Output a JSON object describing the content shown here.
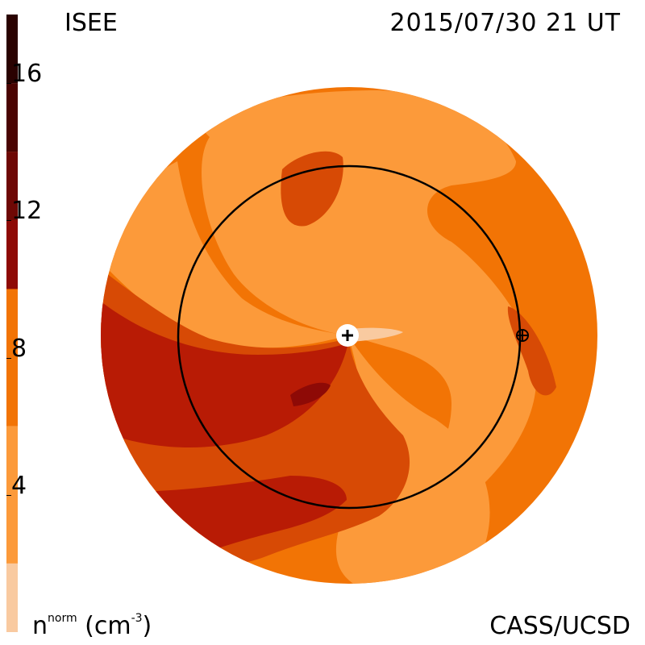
{
  "header": {
    "organization": "ISEE",
    "timestamp": "2015/07/30 21 UT"
  },
  "footer": {
    "credit": "CASS/UCSD",
    "units_prefix": "n",
    "units_superscript": "norm",
    "units_suffix": " (cm",
    "units_exponent": "-3",
    "units_close": ")"
  },
  "colorbar": {
    "min": 0,
    "max": 18,
    "tick_labels": [
      "4",
      "8",
      "12",
      "16"
    ],
    "tick_values": [
      4,
      8,
      12,
      16
    ],
    "bands": [
      {
        "from": 0,
        "to": 2,
        "color": "#f9caa0"
      },
      {
        "from": 2,
        "to": 6,
        "color": "#fc9a3a"
      },
      {
        "from": 6,
        "to": 10,
        "color": "#f27405"
      },
      {
        "from": 10,
        "to": 14,
        "color": "#d74a05"
      },
      {
        "from": 14,
        "to": 18,
        "color": "#b81b05"
      }
    ],
    "dark_bands": [
      {
        "from": 10,
        "to": 12,
        "color": "#8e0a06"
      },
      {
        "from": 12,
        "to": 14,
        "color": "#6e0805"
      },
      {
        "from": 14,
        "to": 16,
        "color": "#4a0402"
      },
      {
        "from": 16,
        "to": 18,
        "color": "#2a0201"
      }
    ]
  },
  "map": {
    "markers": [
      "sun-marker",
      "earth-marker"
    ],
    "colors": {
      "pale": "#f9caa0",
      "light": "#fc9a3a",
      "mid": "#f27405",
      "orange_red": "#d74a05",
      "red": "#b81b05",
      "dark_red": "#8e0a06",
      "orbit": "#000000"
    }
  }
}
